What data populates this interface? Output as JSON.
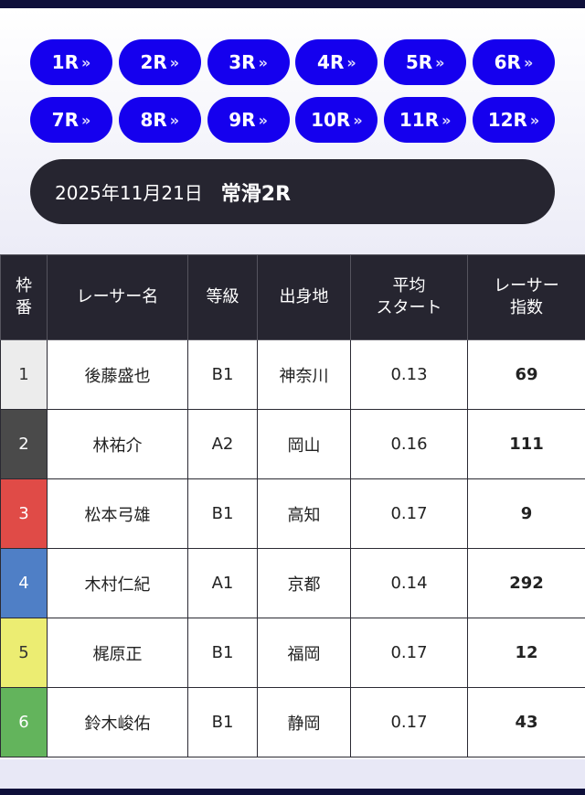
{
  "races": [
    "1R",
    "2R",
    "3R",
    "4R",
    "5R",
    "6R",
    "7R",
    "8R",
    "9R",
    "10R",
    "11R",
    "12R"
  ],
  "chevron": "»",
  "header": {
    "date": "2025年11月21日",
    "race": "常滑2R"
  },
  "table": {
    "columns": [
      "枠\n番",
      "レーサー名",
      "等級",
      "出身地",
      "平均\nスタート",
      "レーサー\n指数"
    ],
    "rows": [
      {
        "waku": "1",
        "color": "#ececec",
        "text_color": "#333333",
        "name": "後藤盛也",
        "grade": "B1",
        "origin": "神奈川",
        "start": "0.13",
        "score": "69"
      },
      {
        "waku": "2",
        "color": "#4a4a4a",
        "text_color": "#ffffff",
        "name": "林祐介",
        "grade": "A2",
        "origin": "岡山",
        "start": "0.16",
        "score": "111"
      },
      {
        "waku": "3",
        "color": "#e04b47",
        "text_color": "#ffffff",
        "name": "松本弓雄",
        "grade": "B1",
        "origin": "高知",
        "start": "0.17",
        "score": "9"
      },
      {
        "waku": "4",
        "color": "#4f7fc6",
        "text_color": "#ffffff",
        "name": "木村仁紀",
        "grade": "A1",
        "origin": "京都",
        "start": "0.14",
        "score": "292"
      },
      {
        "waku": "5",
        "color": "#eced72",
        "text_color": "#333333",
        "name": "梶原正",
        "grade": "B1",
        "origin": "福岡",
        "start": "0.17",
        "score": "12"
      },
      {
        "waku": "6",
        "color": "#63b45c",
        "text_color": "#ffffff",
        "name": "鈴木峻佑",
        "grade": "B1",
        "origin": "静岡",
        "start": "0.17",
        "score": "43"
      }
    ]
  },
  "colors": {
    "race_button": "#1500ee",
    "header_dark": "#262530",
    "nav_bar": "#0e0f3a"
  }
}
